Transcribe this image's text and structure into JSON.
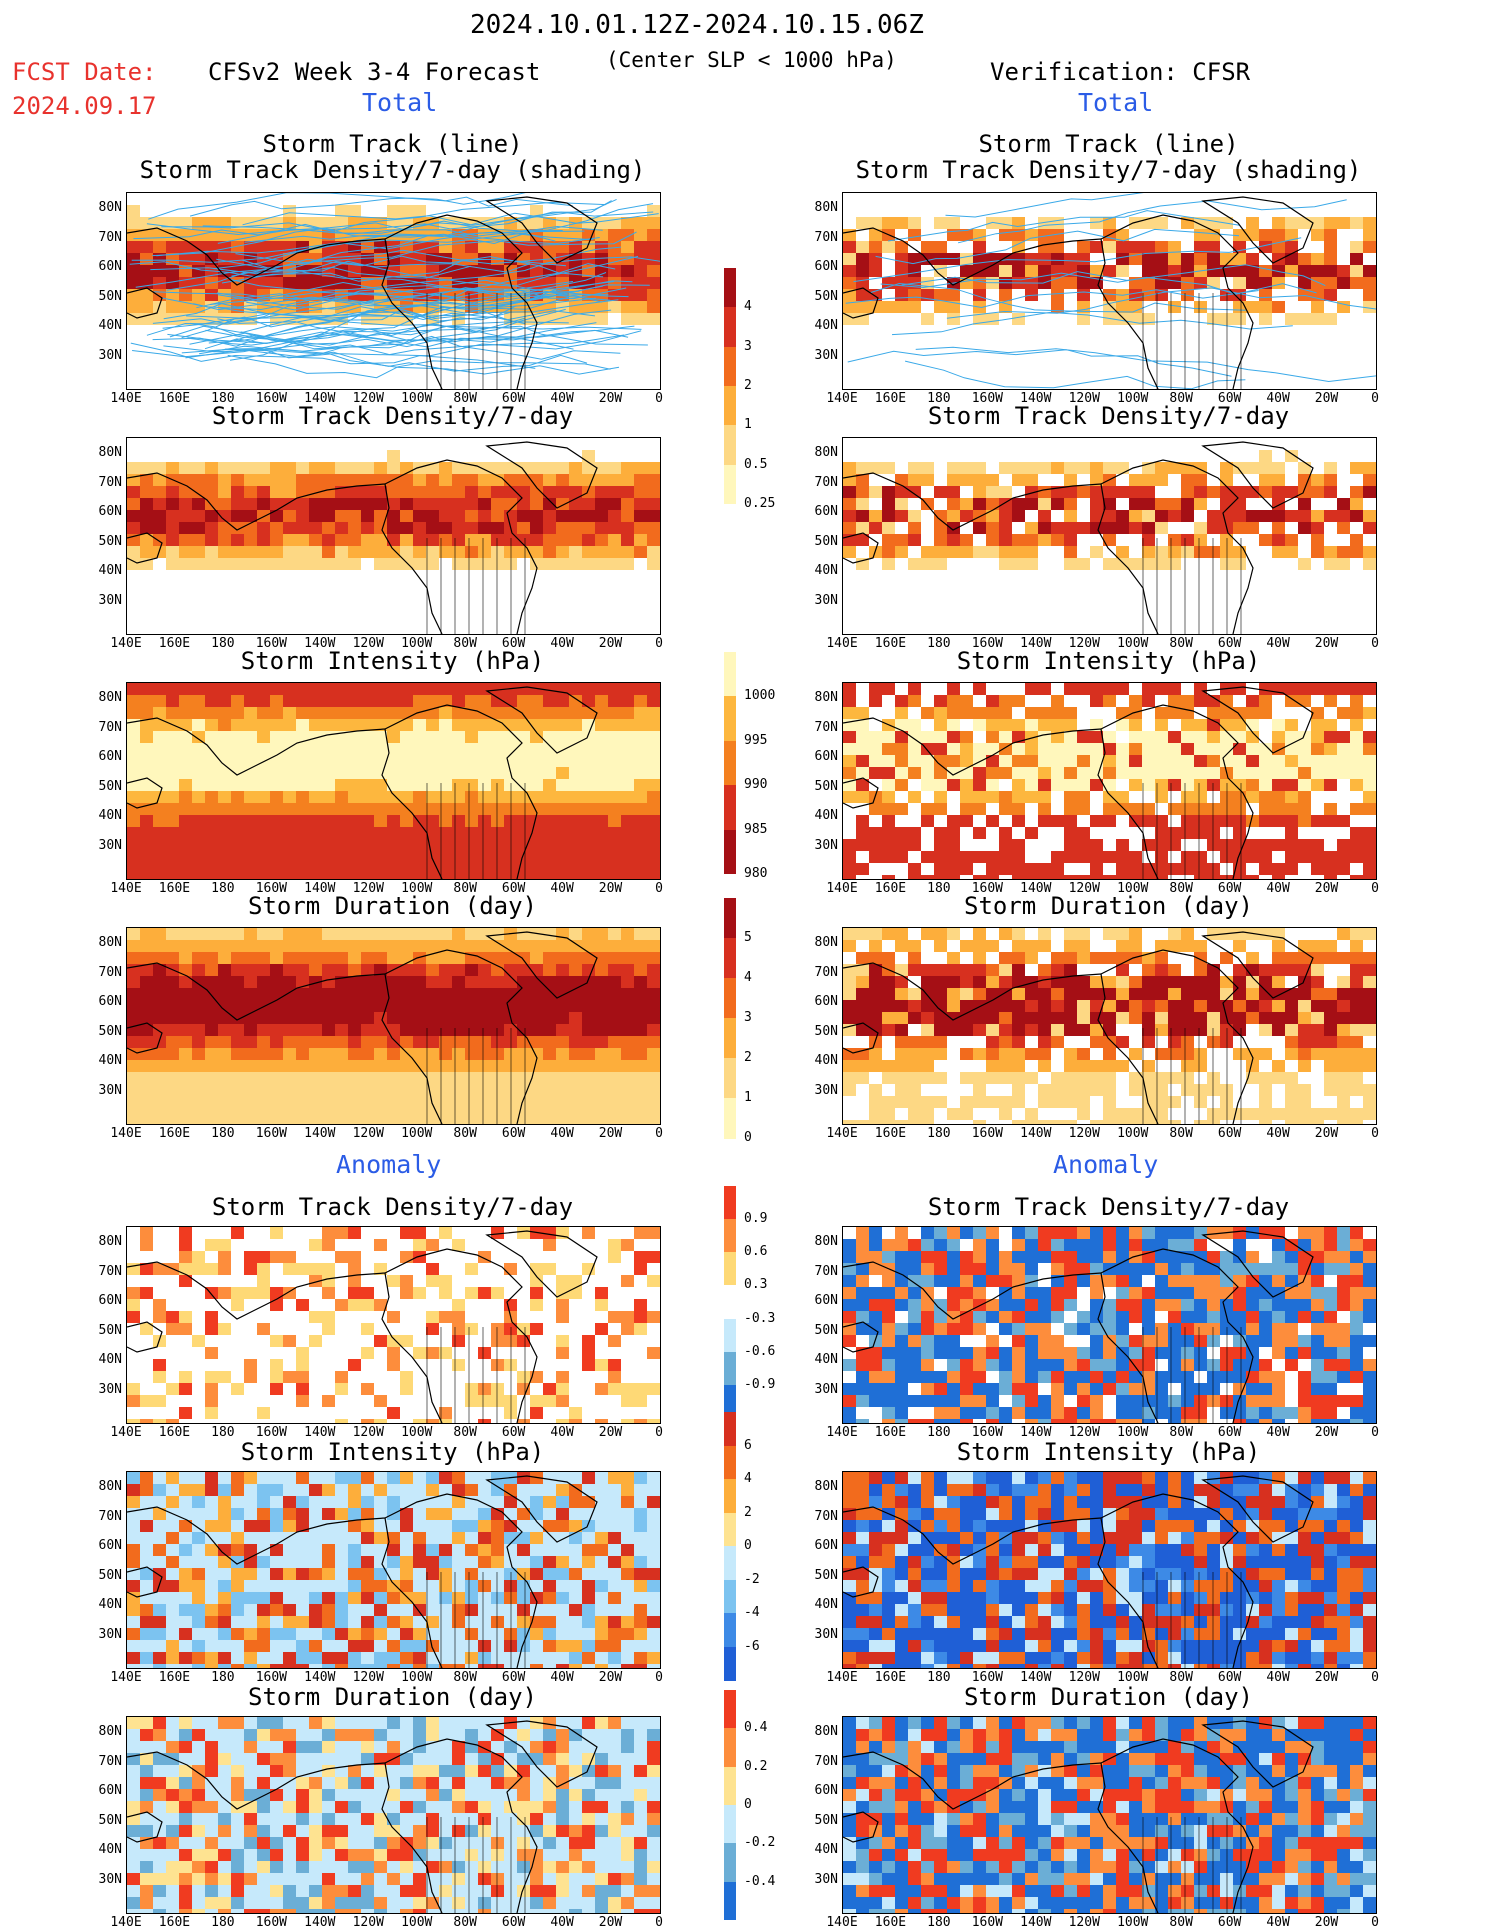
{
  "header": {
    "date_range": "2024.10.01.12Z-2024.10.15.06Z",
    "fcst_label": "FCST Date:",
    "fcst_date": "2024.09.17",
    "forecast_title": "CFSv2 Week 3-4 Forecast",
    "criterion": "(Center SLP < 1000 hPa)",
    "verification": "Verification: CFSR"
  },
  "sections": {
    "total": "Total",
    "anomaly": "Anomaly"
  },
  "titles": {
    "track_line": "Storm Track (line)",
    "track_shading": "Storm Track Density/7-day (shading)",
    "density": "Storm Track Density/7-day",
    "intensity": "Storm Intensity (hPa)",
    "duration": "Storm Duration (day)"
  },
  "axes": {
    "lat_ticks": [
      "80N",
      "70N",
      "60N",
      "50N",
      "40N",
      "30N"
    ],
    "lon_ticks": [
      "140E",
      "160E",
      "180",
      "160W",
      "140W",
      "120W",
      "100W",
      "80W",
      "60W",
      "40W",
      "20W",
      "0"
    ]
  },
  "colorbars": {
    "density_total": {
      "labels": [
        "4",
        "3",
        "2",
        "1",
        "0.5",
        "0.25"
      ],
      "colors": [
        "#a50f15",
        "#d7301f",
        "#f26b1d",
        "#fdae3b",
        "#fdd884",
        "#fff7bc"
      ]
    },
    "intensity_total": {
      "labels": [
        "1000",
        "995",
        "990",
        "985",
        "980"
      ],
      "colors": [
        "#fff7bc",
        "#fdb73e",
        "#f4801f",
        "#d7301f",
        "#a50f15"
      ]
    },
    "duration_total": {
      "labels": [
        "5",
        "4",
        "3",
        "2",
        "1",
        "0"
      ],
      "colors": [
        "#a50f15",
        "#d7301f",
        "#f26b1d",
        "#fdae3b",
        "#fdd884",
        "#fff7bc"
      ]
    },
    "density_anom": {
      "labels": [
        "0.9",
        "0.6",
        "0.3",
        "-0.3",
        "-0.6",
        "-0.9"
      ],
      "colors": [
        "#f03b20",
        "#fd8d3c",
        "#fed976",
        "#ffffff",
        "#c6e9fb",
        "#6baed6",
        "#1f6fd6"
      ]
    },
    "intensity_anom": {
      "labels": [
        "6",
        "4",
        "2",
        "0",
        "-2",
        "-4",
        "-6"
      ],
      "colors": [
        "#d7301f",
        "#f26b1d",
        "#fdae3b",
        "#fee391",
        "#c6e9fb",
        "#7cc3f0",
        "#3d8ae6",
        "#1f5fd6"
      ]
    },
    "duration_anom": {
      "labels": [
        "0.4",
        "0.2",
        "0",
        "-0.2",
        "-0.4"
      ],
      "colors": [
        "#f03b20",
        "#fd8d3c",
        "#fee391",
        "#c6e9fb",
        "#6baed6",
        "#1f6fd6"
      ]
    }
  }
}
